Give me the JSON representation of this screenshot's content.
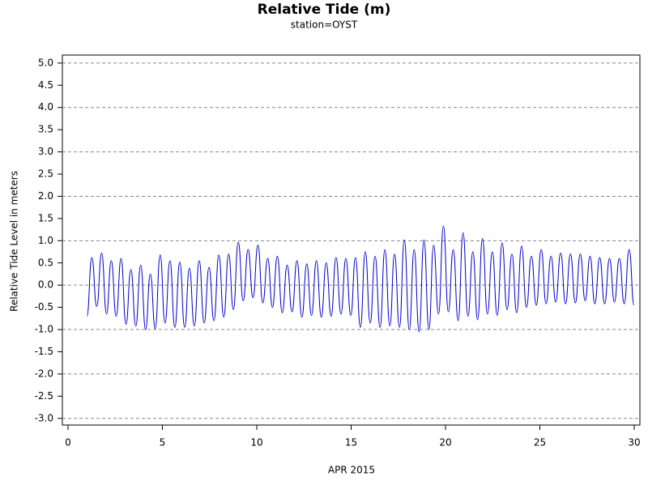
{
  "chart_data": {
    "type": "line",
    "title": "Relative Tide (m)",
    "subtitle": "station=OYST",
    "x_label": "APR 2015",
    "y_label": "Relative Tide Level in meters",
    "xlim": [
      -0.3,
      30.3
    ],
    "ylim": [
      -3.15,
      5.18
    ],
    "xticks": [
      0,
      5,
      10,
      15,
      20,
      25,
      30
    ],
    "yticks": [
      {
        "value": 5,
        "label": "5.0"
      },
      4.5,
      {
        "value": 4,
        "label": "4.0"
      },
      3.5,
      {
        "value": 3,
        "label": "3.0"
      },
      2.5,
      {
        "value": 2,
        "label": "2.0"
      },
      1.5,
      {
        "value": 1,
        "label": "1.0"
      },
      0.5,
      {
        "value": 0,
        "label": "0.0"
      },
      -0.5,
      {
        "value": -1,
        "label": "-1.0"
      },
      -1.5,
      {
        "value": -2,
        "label": "-2.0"
      },
      -2.5,
      {
        "value": -3,
        "label": "-3.0"
      }
    ],
    "grid": true,
    "series": [
      {
        "color": "#0000cc",
        "x": [
          1.0,
          1.26,
          1.52,
          1.78,
          2.04,
          2.29,
          2.55,
          2.81,
          3.07,
          3.33,
          3.59,
          3.85,
          4.11,
          4.36,
          4.62,
          4.88,
          5.14,
          5.4,
          5.66,
          5.92,
          6.18,
          6.43,
          6.69,
          6.95,
          7.21,
          7.47,
          7.73,
          7.99,
          8.25,
          8.51,
          8.76,
          9.02,
          9.28,
          9.54,
          9.8,
          10.06,
          10.32,
          10.58,
          10.83,
          11.09,
          11.35,
          11.61,
          11.87,
          12.13,
          12.39,
          12.65,
          12.9,
          13.16,
          13.42,
          13.68,
          13.94,
          14.2,
          14.46,
          14.72,
          14.98,
          15.23,
          15.49,
          15.75,
          16.01,
          16.27,
          16.53,
          16.79,
          17.05,
          17.3,
          17.56,
          17.82,
          18.08,
          18.34,
          18.6,
          18.86,
          19.12,
          19.37,
          19.63,
          19.89,
          20.15,
          20.41,
          20.67,
          20.93,
          21.19,
          21.45,
          21.7,
          21.96,
          22.22,
          22.48,
          22.74,
          23.0,
          23.26,
          23.52,
          23.77,
          24.03,
          24.29,
          24.55,
          24.81,
          25.07,
          25.33,
          25.59,
          25.84,
          26.1,
          26.36,
          26.62,
          26.88,
          27.14,
          27.4,
          27.66,
          27.91,
          28.17,
          28.43,
          28.69,
          28.95,
          29.21,
          29.47,
          29.73,
          29.99
        ],
        "values": [
          -0.7,
          0.62,
          -0.48,
          0.72,
          -0.65,
          0.55,
          -0.7,
          0.6,
          -0.88,
          0.35,
          -0.92,
          0.45,
          -1.0,
          0.25,
          -0.98,
          0.68,
          -0.85,
          0.55,
          -0.95,
          0.52,
          -0.95,
          0.38,
          -0.92,
          0.55,
          -0.85,
          0.4,
          -0.8,
          0.68,
          -0.72,
          0.7,
          -0.55,
          0.97,
          -0.35,
          0.8,
          -0.28,
          0.9,
          -0.4,
          0.6,
          -0.5,
          0.65,
          -0.62,
          0.45,
          -0.6,
          0.55,
          -0.72,
          0.48,
          -0.68,
          0.55,
          -0.72,
          0.5,
          -0.7,
          0.62,
          -0.65,
          0.6,
          -0.68,
          0.62,
          -0.95,
          0.75,
          -0.85,
          0.65,
          -0.95,
          0.8,
          -0.92,
          0.7,
          -0.95,
          1.02,
          -1.0,
          0.8,
          -1.05,
          1.02,
          -1.0,
          0.9,
          -0.65,
          1.33,
          -0.6,
          0.8,
          -0.8,
          1.18,
          -0.7,
          0.75,
          -0.78,
          1.05,
          -0.65,
          0.75,
          -0.68,
          0.95,
          -0.55,
          0.7,
          -0.62,
          0.88,
          -0.5,
          0.65,
          -0.45,
          0.8,
          -0.42,
          0.65,
          -0.38,
          0.72,
          -0.42,
          0.7,
          -0.4,
          0.7,
          -0.35,
          0.65,
          -0.42,
          0.62,
          -0.42,
          0.6,
          -0.38,
          0.6,
          -0.42,
          0.8,
          -0.45
        ]
      }
    ]
  }
}
